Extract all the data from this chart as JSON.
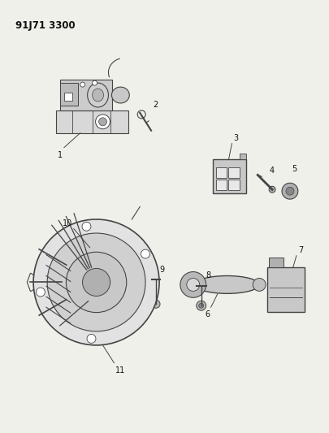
{
  "title": "91J71 3300",
  "background_color": "#f0f0eb",
  "line_color": "#444444",
  "text_color": "#111111",
  "fig_width": 4.06,
  "fig_height": 5.33,
  "dpi": 100
}
